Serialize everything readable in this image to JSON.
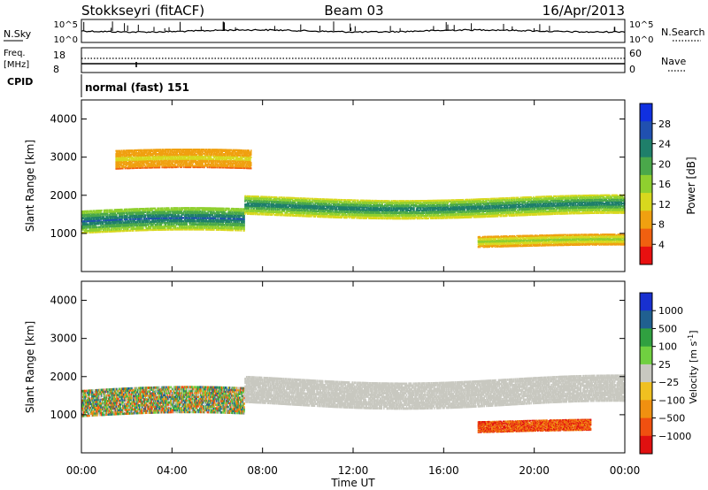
{
  "header": {
    "station": "Stokkseyri (fitACF)",
    "beam": "Beam 03",
    "date": "16/Apr/2013"
  },
  "noise_panel": {
    "left_label": "N.Sky",
    "right_label": "N.Search",
    "left_ticks": [
      "10^5",
      "10^0"
    ],
    "right_ticks": [
      "10^5",
      "10^0"
    ]
  },
  "freq_panel": {
    "left_label_1": "Freq.",
    "left_label_2": "[MHz]",
    "left_ticks": [
      "18",
      "8"
    ],
    "right_label": "Nave",
    "right_ticks": [
      "60",
      "0"
    ]
  },
  "cpid": {
    "label": "CPID",
    "value": "normal (fast) 151"
  },
  "x_axis": {
    "label": "Time UT",
    "ticks": [
      "00:00",
      "04:00",
      "08:00",
      "12:00",
      "16:00",
      "20:00",
      "00:00"
    ]
  },
  "chart_data": [
    {
      "type": "heatmap",
      "title": "",
      "xlabel": "Time UT",
      "ylabel": "Slant Range [km]",
      "x_range_hours": [
        0,
        24
      ],
      "ylim": [
        0,
        4500
      ],
      "y_ticks": [
        1000,
        2000,
        3000,
        4000
      ],
      "colorbar": {
        "label": "Power [dB]",
        "ticks": [
          "4",
          "8",
          "12",
          "16",
          "20",
          "24",
          "28"
        ],
        "colors": [
          "#1030e0",
          "#2050b0",
          "#1f7f6a",
          "#4aa84a",
          "#8fcf2f",
          "#d8d81e",
          "#f0a010",
          "#f06010",
          "#e81010"
        ]
      },
      "echo_bands": [
        {
          "description": "primary ionospheric band",
          "start_hour": 0,
          "end_hour": 7.2,
          "center_km": 1300,
          "width_km": 600,
          "power_db": 24
        },
        {
          "description": "main band rising",
          "start_hour": 7.2,
          "end_hour": 24,
          "center_km": 1700,
          "width_km": 500,
          "power_db": 22
        },
        {
          "description": "upper sporadic echoes",
          "start_hour": 1.5,
          "end_hour": 7.5,
          "center_km": 2900,
          "width_km": 500,
          "power_db": 10
        },
        {
          "description": "late lower band",
          "start_hour": 17.5,
          "end_hour": 24,
          "center_km": 800,
          "width_km": 300,
          "power_db": 14
        }
      ]
    },
    {
      "type": "heatmap",
      "title": "",
      "xlabel": "Time UT",
      "ylabel": "Slant Range [km]",
      "x_range_hours": [
        0,
        24
      ],
      "ylim": [
        0,
        4500
      ],
      "y_ticks": [
        1000,
        2000,
        3000,
        4000
      ],
      "colorbar": {
        "label": "Velocity [m s^-1]",
        "ticks": [
          "1000",
          "500",
          "100",
          "25",
          "−25",
          "−100",
          "−500",
          "−1000"
        ],
        "colors": [
          "#1830d0",
          "#206090",
          "#30a040",
          "#70d040",
          "#c8c8c0",
          "#f0c020",
          "#f09010",
          "#f05010",
          "#e01010"
        ]
      },
      "echo_bands": [
        {
          "description": "early mixed velocity band",
          "start_hour": 0,
          "end_hour": 7.2,
          "center_km": 1300,
          "width_km": 700,
          "velocity_ms": 100
        },
        {
          "description": "ground scatter band",
          "start_hour": 7.2,
          "end_hour": 24,
          "center_km": 1600,
          "width_km": 700,
          "velocity_ms": 0
        },
        {
          "description": "late negative velocity echoes",
          "start_hour": 17.5,
          "end_hour": 22.5,
          "center_km": 700,
          "width_km": 300,
          "velocity_ms": -500
        }
      ]
    }
  ]
}
